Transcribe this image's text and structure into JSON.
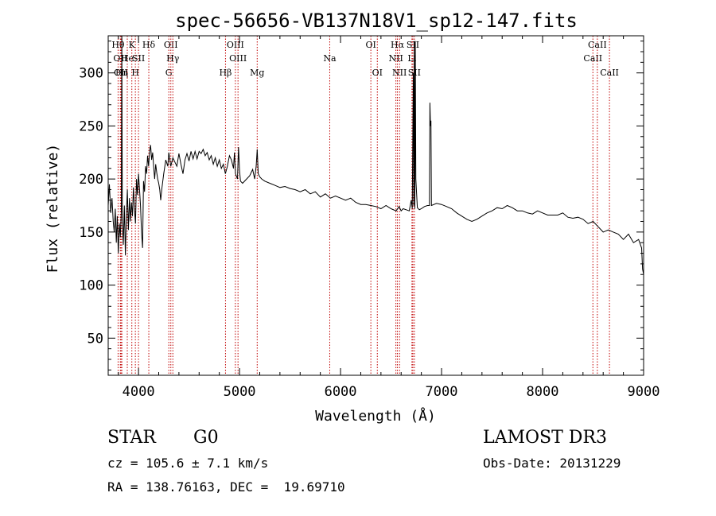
{
  "chart_data": {
    "type": "line",
    "title": "spec-56656-VB137N18V1_sp12-147.fits",
    "xlabel": "Wavelength (Å)",
    "ylabel": "Flux (relative)",
    "xlim": [
      3700,
      9000
    ],
    "ylim": [
      15,
      335
    ],
    "xticks": [
      4000,
      5000,
      6000,
      7000,
      8000,
      9000
    ],
    "yticks": [
      50,
      100,
      150,
      200,
      250,
      300
    ],
    "grid": false,
    "series": [
      {
        "line_color": "#000000",
        "points": [
          [
            3700,
            175
          ],
          [
            3712,
            195
          ],
          [
            3725,
            168
          ],
          [
            3738,
            182
          ],
          [
            3750,
            160
          ],
          [
            3760,
            150
          ],
          [
            3770,
            172
          ],
          [
            3780,
            140
          ],
          [
            3790,
            165
          ],
          [
            3800,
            130
          ],
          [
            3810,
            158
          ],
          [
            3820,
            145
          ],
          [
            3830,
            170
          ],
          [
            3835,
            335
          ],
          [
            3840,
            160
          ],
          [
            3850,
            138
          ],
          [
            3860,
            175
          ],
          [
            3870,
            128
          ],
          [
            3880,
            168
          ],
          [
            3890,
            190
          ],
          [
            3900,
            152
          ],
          [
            3910,
            182
          ],
          [
            3920,
            160
          ],
          [
            3930,
            178
          ],
          [
            3940,
            165
          ],
          [
            3950,
            192
          ],
          [
            3960,
            172
          ],
          [
            3970,
            158
          ],
          [
            3980,
            200
          ],
          [
            3990,
            185
          ],
          [
            4000,
            205
          ],
          [
            4010,
            190
          ],
          [
            4020,
            175
          ],
          [
            4030,
            150
          ],
          [
            4040,
            135
          ],
          [
            4050,
            198
          ],
          [
            4060,
            188
          ],
          [
            4070,
            212
          ],
          [
            4080,
            205
          ],
          [
            4090,
            222
          ],
          [
            4100,
            212
          ],
          [
            4110,
            226
          ],
          [
            4120,
            232
          ],
          [
            4130,
            218
          ],
          [
            4140,
            225
          ],
          [
            4150,
            212
          ],
          [
            4160,
            200
          ],
          [
            4170,
            214
          ],
          [
            4180,
            206
          ],
          [
            4190,
            200
          ],
          [
            4200,
            196
          ],
          [
            4210,
            190
          ],
          [
            4220,
            180
          ],
          [
            4230,
            190
          ],
          [
            4250,
            205
          ],
          [
            4270,
            218
          ],
          [
            4290,
            212
          ],
          [
            4300,
            225
          ],
          [
            4320,
            212
          ],
          [
            4340,
            220
          ],
          [
            4360,
            216
          ],
          [
            4380,
            212
          ],
          [
            4400,
            224
          ],
          [
            4420,
            214
          ],
          [
            4440,
            205
          ],
          [
            4460,
            218
          ],
          [
            4480,
            224
          ],
          [
            4500,
            217
          ],
          [
            4520,
            226
          ],
          [
            4540,
            219
          ],
          [
            4560,
            226
          ],
          [
            4580,
            219
          ],
          [
            4600,
            226
          ],
          [
            4620,
            224
          ],
          [
            4640,
            228
          ],
          [
            4660,
            222
          ],
          [
            4680,
            225
          ],
          [
            4700,
            218
          ],
          [
            4720,
            222
          ],
          [
            4740,
            214
          ],
          [
            4760,
            220
          ],
          [
            4780,
            212
          ],
          [
            4800,
            218
          ],
          [
            4820,
            210
          ],
          [
            4840,
            214
          ],
          [
            4860,
            205
          ],
          [
            4880,
            212
          ],
          [
            4900,
            222
          ],
          [
            4920,
            218
          ],
          [
            4940,
            210
          ],
          [
            4950,
            225
          ],
          [
            4960,
            205
          ],
          [
            4980,
            200
          ],
          [
            4990,
            230
          ],
          [
            5000,
            208
          ],
          [
            5010,
            198
          ],
          [
            5030,
            196
          ],
          [
            5060,
            199
          ],
          [
            5100,
            203
          ],
          [
            5130,
            209
          ],
          [
            5150,
            200
          ],
          [
            5165,
            212
          ],
          [
            5175,
            228
          ],
          [
            5185,
            205
          ],
          [
            5200,
            202
          ],
          [
            5220,
            200
          ],
          [
            5250,
            198
          ],
          [
            5300,
            196
          ],
          [
            5350,
            194
          ],
          [
            5400,
            192
          ],
          [
            5450,
            193
          ],
          [
            5500,
            191
          ],
          [
            5550,
            190
          ],
          [
            5600,
            188
          ],
          [
            5650,
            190
          ],
          [
            5700,
            186
          ],
          [
            5750,
            188
          ],
          [
            5800,
            183
          ],
          [
            5850,
            186
          ],
          [
            5900,
            182
          ],
          [
            5950,
            184
          ],
          [
            6000,
            182
          ],
          [
            6050,
            180
          ],
          [
            6100,
            182
          ],
          [
            6150,
            178
          ],
          [
            6200,
            176
          ],
          [
            6250,
            176
          ],
          [
            6300,
            175
          ],
          [
            6350,
            174
          ],
          [
            6400,
            172
          ],
          [
            6450,
            175
          ],
          [
            6500,
            172
          ],
          [
            6550,
            170
          ],
          [
            6580,
            174
          ],
          [
            6600,
            170
          ],
          [
            6620,
            172
          ],
          [
            6650,
            171
          ],
          [
            6680,
            170
          ],
          [
            6700,
            180
          ],
          [
            6710,
            172
          ],
          [
            6720,
            300
          ],
          [
            6725,
            175
          ],
          [
            6730,
            330
          ],
          [
            6735,
            172
          ],
          [
            6740,
            330
          ],
          [
            6745,
            200
          ],
          [
            6760,
            173
          ],
          [
            6780,
            171
          ],
          [
            6800,
            172
          ],
          [
            6830,
            174
          ],
          [
            6860,
            175
          ],
          [
            6880,
            175
          ],
          [
            6885,
            272
          ],
          [
            6890,
            250
          ],
          [
            6895,
            255
          ],
          [
            6900,
            175
          ],
          [
            6950,
            177
          ],
          [
            7000,
            176
          ],
          [
            7050,
            174
          ],
          [
            7100,
            172
          ],
          [
            7150,
            168
          ],
          [
            7200,
            165
          ],
          [
            7250,
            162
          ],
          [
            7300,
            160
          ],
          [
            7350,
            162
          ],
          [
            7400,
            165
          ],
          [
            7450,
            168
          ],
          [
            7500,
            170
          ],
          [
            7550,
            173
          ],
          [
            7600,
            172
          ],
          [
            7650,
            175
          ],
          [
            7700,
            173
          ],
          [
            7750,
            170
          ],
          [
            7800,
            170
          ],
          [
            7850,
            168
          ],
          [
            7900,
            167
          ],
          [
            7950,
            170
          ],
          [
            8000,
            168
          ],
          [
            8050,
            166
          ],
          [
            8100,
            166
          ],
          [
            8150,
            166
          ],
          [
            8200,
            168
          ],
          [
            8250,
            164
          ],
          [
            8300,
            163
          ],
          [
            8350,
            164
          ],
          [
            8400,
            162
          ],
          [
            8450,
            158
          ],
          [
            8500,
            160
          ],
          [
            8550,
            155
          ],
          [
            8600,
            150
          ],
          [
            8650,
            152
          ],
          [
            8700,
            150
          ],
          [
            8750,
            148
          ],
          [
            8800,
            143
          ],
          [
            8850,
            148
          ],
          [
            8900,
            140
          ],
          [
            8950,
            143
          ],
          [
            8980,
            135
          ],
          [
            8990,
            115
          ],
          [
            9000,
            110
          ]
        ]
      }
    ],
    "lines_color": "#c00000",
    "line_markers": [
      {
        "x": 3798,
        "label": "Hθ",
        "row": 0
      },
      {
        "x": 3820,
        "label": "OII",
        "row": 1
      },
      {
        "x": 3826,
        "label": "OII",
        "row": 2
      },
      {
        "x": 3835,
        "label": "Hη",
        "row": 2
      },
      {
        "x": 3889,
        "label": "He",
        "row": 1
      },
      {
        "x": 3934,
        "label": "K",
        "row": 0
      },
      {
        "x": 3969,
        "label": "H",
        "row": 2
      },
      {
        "x": 4000,
        "label": "SII",
        "row": 1
      },
      {
        "x": 4102,
        "label": "Hδ",
        "row": 0
      },
      {
        "x": 4300,
        "label": "G",
        "row": 2
      },
      {
        "x": 4320,
        "label": "OII",
        "row": 0
      },
      {
        "x": 4340,
        "label": "Hγ",
        "row": 1
      },
      {
        "x": 4861,
        "label": "Hβ",
        "row": 2
      },
      {
        "x": 4959,
        "label": "OIII",
        "row": 0
      },
      {
        "x": 4985,
        "label": "OIII",
        "row": 1
      },
      {
        "x": 5175,
        "label": "Mg",
        "row": 2
      },
      {
        "x": 5893,
        "label": "Na",
        "row": 1
      },
      {
        "x": 6300,
        "label": "OI",
        "row": 0
      },
      {
        "x": 6364,
        "label": "OI",
        "row": 2
      },
      {
        "x": 6548,
        "label": "NII",
        "row": 1
      },
      {
        "x": 6563,
        "label": "Hα",
        "row": 0
      },
      {
        "x": 6584,
        "label": "NII",
        "row": 2
      },
      {
        "x": 6707,
        "label": "Li",
        "row": 1
      },
      {
        "x": 6716,
        "label": "SII",
        "row": 0
      },
      {
        "x": 6731,
        "label": "SII",
        "row": 2
      },
      {
        "x": 8498,
        "label": "CaII",
        "row": 1
      },
      {
        "x": 8542,
        "label": "CaII",
        "row": 0
      },
      {
        "x": 8662,
        "label": "CaII",
        "row": 2
      }
    ]
  },
  "footer": {
    "object_class": "STAR",
    "subclass": "G0",
    "cz": "cz = 105.6 ± 7.1 km/s",
    "coords": "RA = 138.76163, DEC =  19.69710",
    "survey": "LAMOST DR3",
    "obs_date": "Obs-Date: 20131229"
  }
}
